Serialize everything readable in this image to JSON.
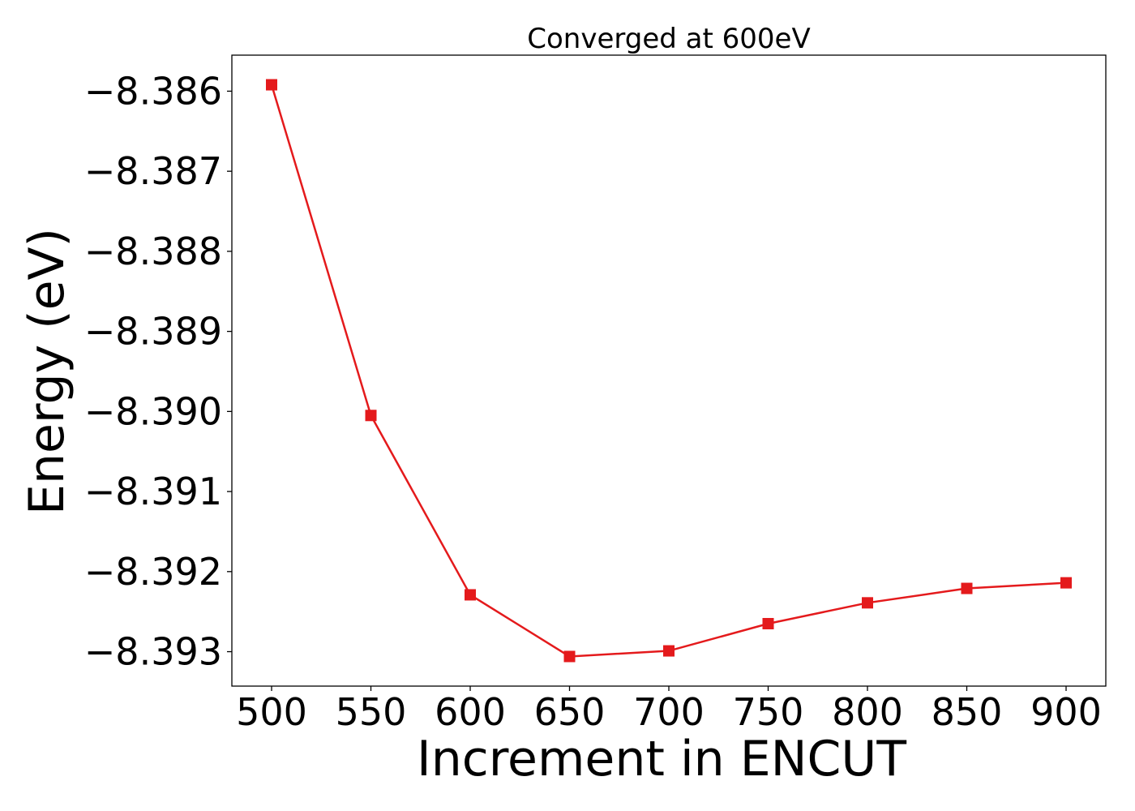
{
  "chart_data": {
    "type": "line",
    "title": "Converged at 600eV",
    "xlabel": "Increment in ENCUT",
    "ylabel": "Energy (eV)",
    "xlim": [
      480,
      920
    ],
    "ylim": [
      -8.39343,
      -8.38555
    ],
    "x_ticks": [
      500,
      550,
      600,
      650,
      700,
      750,
      800,
      850,
      900
    ],
    "x_tick_labels": [
      "500",
      "550",
      "600",
      "650",
      "700",
      "750",
      "800",
      "850",
      "900"
    ],
    "y_ticks": [
      -8.386,
      -8.387,
      -8.388,
      -8.389,
      -8.39,
      -8.391,
      -8.392,
      -8.393
    ],
    "y_tick_labels": [
      "−8.386",
      "−8.387",
      "−8.388",
      "−8.389",
      "−8.390",
      "−8.391",
      "−8.392",
      "−8.393"
    ],
    "grid": false,
    "legend": "none",
    "series": [
      {
        "color": "#e41a1c",
        "marker": "square",
        "x": [
          500,
          550,
          600,
          650,
          700,
          750,
          800,
          850,
          900
        ],
        "y": [
          -8.38592,
          -8.39005,
          -8.39229,
          -8.39306,
          -8.39299,
          -8.39265,
          -8.39239,
          -8.39221,
          -8.39214
        ]
      }
    ]
  }
}
